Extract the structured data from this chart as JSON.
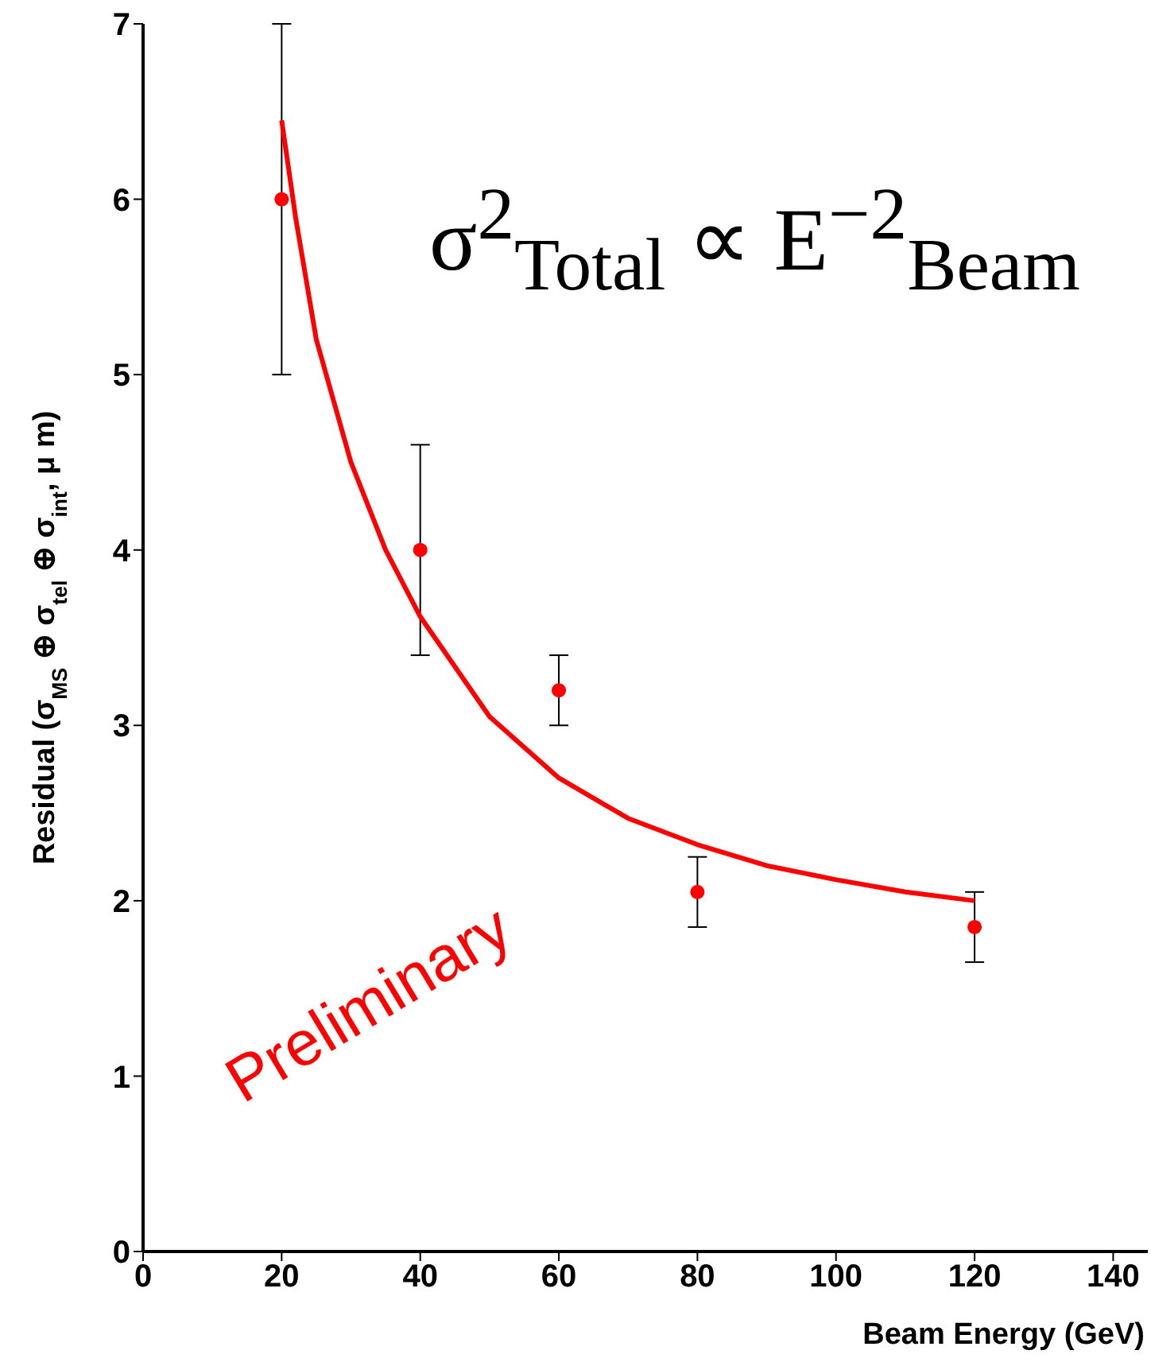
{
  "chart_data": {
    "type": "scatter",
    "xlabel": "Beam Energy (GeV)",
    "ylabel": "Residual (σ$_{MS}$ ⊕ σ$_{tel}$ ⊕ σ$_{int}$, μ m)",
    "annotations": [
      "σ$^{2}$$_{Total}$ ∝ E$^{−2}$$_{Beam}$",
      "Preliminary"
    ],
    "xlim": [
      0,
      145
    ],
    "xticks": [
      0,
      20,
      40,
      60,
      80,
      100,
      120,
      140
    ],
    "ylim": [
      0,
      7
    ],
    "yticks": [
      0,
      1,
      2,
      3,
      4,
      5,
      6,
      7
    ],
    "series": [
      {
        "color": "#ff0000",
        "marker": "circle",
        "x": [
          20,
          40,
          60,
          80,
          120
        ],
        "values": [
          6,
          4,
          3.2,
          2.05,
          1.85
        ],
        "errors": [
          [
            5,
            7
          ],
          [
            3.4,
            4.6
          ],
          [
            3.0,
            3.4
          ],
          [
            1.85,
            2.25
          ],
          [
            1.65,
            2.05
          ]
        ]
      },
      {
        "type": "line",
        "color": "#ff0000",
        "marker": "none",
        "x": [
          20,
          22,
          25,
          30,
          35,
          40,
          50,
          60,
          70,
          80,
          90,
          100,
          110,
          120
        ],
        "values": [
          6.45,
          5.9,
          5.2,
          4.5,
          4.0,
          3.62,
          3.05,
          2.7,
          2.47,
          2.32,
          2.2,
          2.12,
          2.05,
          2.0
        ]
      }
    ]
  }
}
